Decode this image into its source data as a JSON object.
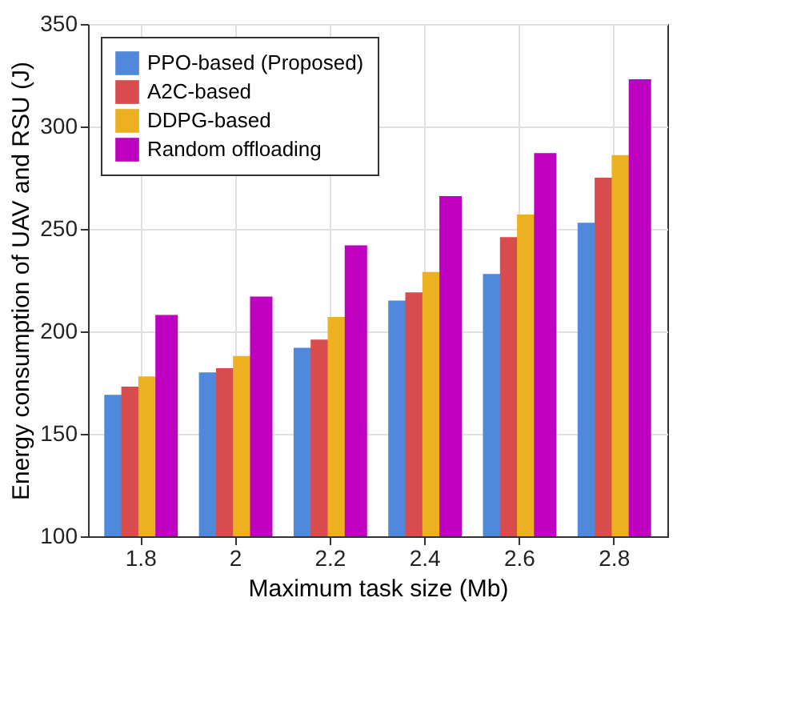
{
  "chart_data": {
    "type": "bar",
    "xlabel": "Maximum task size (Mb)",
    "ylabel": "Energy consumption of UAV and RSU (J)",
    "categories": [
      "1.8",
      "2",
      "2.2",
      "2.4",
      "2.6",
      "2.8"
    ],
    "series": [
      {
        "name": "PPO-based (Proposed)",
        "color": "#5088dc",
        "values": [
          169,
          180,
          192,
          215,
          228,
          253
        ]
      },
      {
        "name": "A2C-based",
        "color": "#d94c4e",
        "values": [
          173,
          182,
          196,
          219,
          246,
          275
        ]
      },
      {
        "name": "DDPG-based",
        "color": "#ecb021",
        "values": [
          178,
          188,
          207,
          229,
          257,
          286
        ]
      },
      {
        "name": "Random offloading",
        "color": "#c000c0",
        "values": [
          208,
          217,
          242,
          266,
          287,
          323
        ]
      }
    ],
    "ylim": [
      100,
      350
    ],
    "yticks": [
      100,
      150,
      200,
      250,
      300,
      350
    ],
    "grid": true,
    "legend": "top left"
  }
}
